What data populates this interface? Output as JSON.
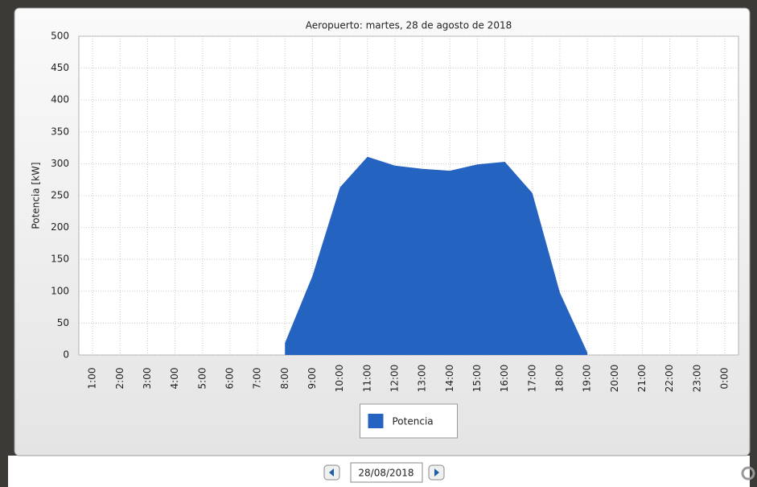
{
  "chart_data": {
    "type": "area",
    "title": "Aeropuerto: martes, 28 de agosto de 2018",
    "y_label": "Potencia [kW]",
    "categories": [
      "1:00",
      "2:00",
      "3:00",
      "4:00",
      "5:00",
      "6:00",
      "7:00",
      "8:00",
      "9:00",
      "10:00",
      "11:00",
      "12:00",
      "13:00",
      "14:00",
      "15:00",
      "16:00",
      "17:00",
      "18:00",
      "19:00",
      "20:00",
      "21:00",
      "22:00",
      "23:00",
      "0:00"
    ],
    "series": [
      {
        "name": "Potencia",
        "color": "#2563c0",
        "values": [
          null,
          null,
          null,
          null,
          null,
          null,
          null,
          19,
          124,
          263,
          311,
          297,
          292,
          289,
          299,
          303,
          254,
          98,
          4,
          null,
          null,
          null,
          null,
          null
        ]
      }
    ],
    "ylim": [
      0,
      500
    ],
    "yticks": [
      0,
      50,
      100,
      150,
      200,
      250,
      300,
      350,
      400,
      450,
      500
    ],
    "grid": true,
    "legend": "bottom"
  },
  "date_picker": {
    "date": "28/08/2018"
  }
}
